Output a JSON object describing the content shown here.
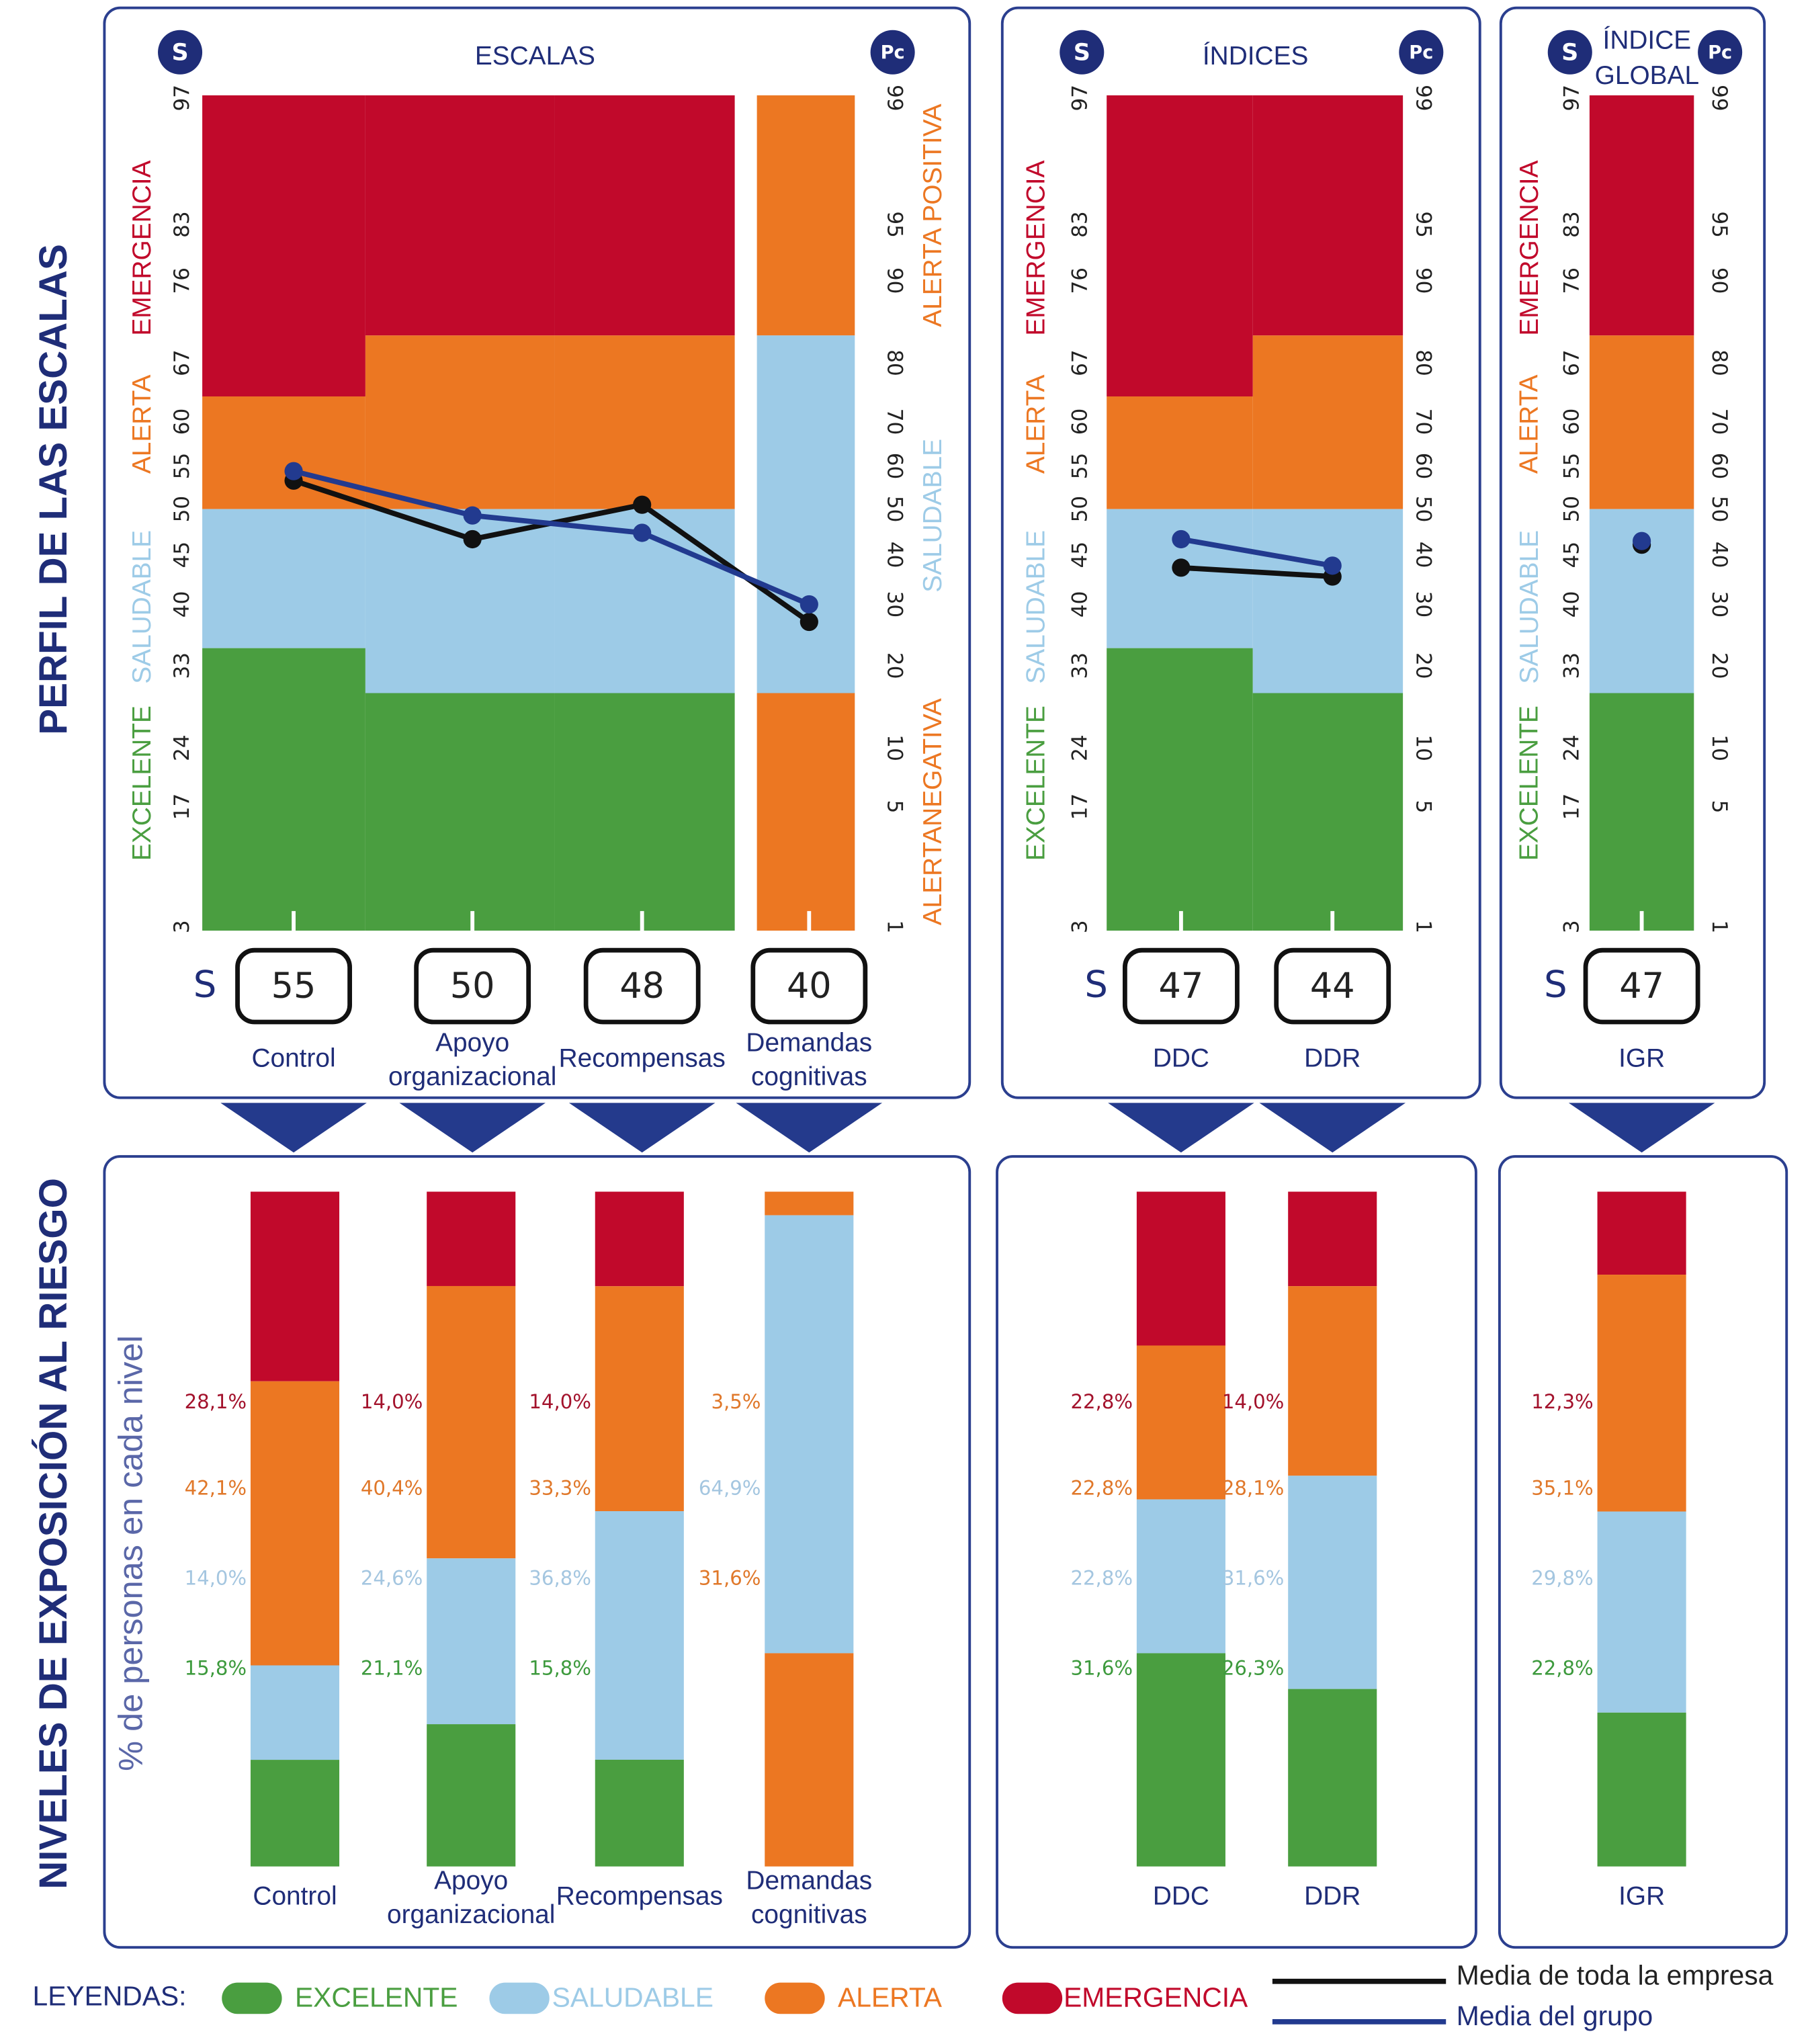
{
  "side_titles": {
    "profile": "PERFIL DE LAS ESCALAS",
    "exposure": "NIVELES DE EXPOSICIÓN AL RIESGO",
    "exposure_axis": "% de personas en cada nivel"
  },
  "badges": {
    "s": "S",
    "pc": "Pc"
  },
  "score_prefix": "S",
  "colors": {
    "emergencia": "#c1092b",
    "alerta": "#ec7722",
    "saludable": "#9dcbe7",
    "excelente": "#4a9e40",
    "navy": "#1f2d78",
    "company_line": "#111111",
    "group_line": "#223a8f"
  },
  "panels": [
    {
      "title_lines": [
        "ESCALAS"
      ],
      "left_zone_labels": [
        "EMERGENCIA",
        "ALERTA",
        "SALUDABLE",
        "EXCELENTE"
      ],
      "right_zone_labels": [
        "ALERTA POSITIVA",
        "SALUDABLE",
        "ALERTANEGATIVA"
      ]
    },
    {
      "title_lines": [
        "ÍNDICES"
      ],
      "left_zone_labels": [
        "EMERGENCIA",
        "ALERTA",
        "SALUDABLE",
        "EXCELENTE"
      ],
      "right_zone_labels": []
    },
    {
      "title_lines": [
        "ÍNDICE",
        "GLOBAL"
      ],
      "left_zone_labels": [
        "EMERGENCIA",
        "ALERTA",
        "SALUDABLE",
        "EXCELENTE"
      ],
      "right_zone_labels": []
    }
  ],
  "legend": {
    "title": "LEYENDAS:",
    "items": [
      {
        "label": "EXCELENTE",
        "color": "#4a9e40"
      },
      {
        "label": "SALUDABLE",
        "color": "#9dcbe7"
      },
      {
        "label": "ALERTA",
        "color": "#ec7722"
      },
      {
        "label": "EMERGENCIA",
        "color": "#c1092b"
      }
    ],
    "lines": [
      {
        "label": "Media de toda la empresa",
        "color": "#111111"
      },
      {
        "label": "Media del grupo",
        "color": "#223a8f"
      }
    ]
  },
  "chart_data": {
    "type": "bar",
    "title": "PERFIL DE LAS ESCALAS / NIVELES DE EXPOSICIÓN AL RIESGO",
    "profile_axis": {
      "s_ticks": [
        97,
        83,
        76,
        67,
        60,
        55,
        50,
        45,
        40,
        33,
        24,
        17,
        3
      ],
      "pc_ticks": [
        99,
        95,
        90,
        80,
        70,
        60,
        50,
        40,
        30,
        20,
        10,
        5,
        1
      ]
    },
    "zone_profiles": {
      "A": [
        {
          "level": "emergencia",
          "from": 63,
          "to": 97
        },
        {
          "level": "alerta",
          "from": 50,
          "to": 63
        },
        {
          "level": "saludable",
          "from": 35,
          "to": 50
        },
        {
          "level": "excelente",
          "from": 3,
          "to": 35
        }
      ],
      "B": [
        {
          "level": "emergencia",
          "from": 70,
          "to": 97
        },
        {
          "level": "alerta",
          "from": 50,
          "to": 70
        },
        {
          "level": "saludable",
          "from": 30,
          "to": 50
        },
        {
          "level": "excelente",
          "from": 3,
          "to": 30
        }
      ],
      "C": [
        {
          "level": "alerta",
          "from": 70,
          "to": 97
        },
        {
          "level": "saludable",
          "from": 30,
          "to": 70
        },
        {
          "level": "alerta",
          "from": 3,
          "to": 30
        }
      ]
    },
    "exposure_ylabel": "% de personas en cada nivel",
    "items": [
      {
        "name": "Control",
        "label_lines": [
          "Control"
        ],
        "panel": 0,
        "zones": "A",
        "score": 55,
        "group_mean": 54.4,
        "company_mean": 53.3,
        "exposure": [
          {
            "level": "emergencia",
            "value": 28.1,
            "label": "28,1%"
          },
          {
            "level": "alerta",
            "value": 42.1,
            "label": "42,1%"
          },
          {
            "level": "saludable",
            "value": 14.0,
            "label": "14,0%"
          },
          {
            "level": "excelente",
            "value": 15.8,
            "label": "15,8%"
          }
        ]
      },
      {
        "name": "Apoyo organizacional",
        "label_lines": [
          "Apoyo",
          "organizacional"
        ],
        "panel": 0,
        "zones": "B",
        "score": 50,
        "group_mean": 49.3,
        "company_mean": 46.7,
        "exposure": [
          {
            "level": "emergencia",
            "value": 14.0,
            "label": "14,0%"
          },
          {
            "level": "alerta",
            "value": 40.4,
            "label": "40,4%"
          },
          {
            "level": "saludable",
            "value": 24.6,
            "label": "24,6%"
          },
          {
            "level": "excelente",
            "value": 21.1,
            "label": "21,1%"
          }
        ]
      },
      {
        "name": "Recompensas",
        "label_lines": [
          "Recompensas"
        ],
        "panel": 0,
        "zones": "B",
        "score": 48,
        "group_mean": 47.4,
        "company_mean": 50.5,
        "exposure": [
          {
            "level": "emergencia",
            "value": 14.0,
            "label": "14,0%"
          },
          {
            "level": "alerta",
            "value": 33.3,
            "label": "33,3%"
          },
          {
            "level": "saludable",
            "value": 36.8,
            "label": "36,8%"
          },
          {
            "level": "excelente",
            "value": 15.8,
            "label": "15,8%"
          }
        ]
      },
      {
        "name": "Demandas cognitivas",
        "label_lines": [
          "Demandas",
          "cognitivas"
        ],
        "panel": 0,
        "zones": "C",
        "score": 40,
        "group_mean": 40.0,
        "company_mean": 38.0,
        "exposure": [
          {
            "level": "alerta",
            "value": 3.5,
            "label": "3,5%"
          },
          {
            "level": "saludable",
            "value": 64.9,
            "label": "64,9%"
          },
          {
            "level": "alerta",
            "value": 31.6,
            "label": "31,6%"
          }
        ]
      },
      {
        "name": "DDC",
        "label_lines": [
          "DDC"
        ],
        "panel": 1,
        "zones": "A",
        "score": 47,
        "group_mean": 46.7,
        "company_mean": 43.7,
        "exposure": [
          {
            "level": "emergencia",
            "value": 22.8,
            "label": "22,8%"
          },
          {
            "level": "alerta",
            "value": 22.8,
            "label": "22,8%"
          },
          {
            "level": "saludable",
            "value": 22.8,
            "label": "22,8%"
          },
          {
            "level": "excelente",
            "value": 31.6,
            "label": "31,6%"
          }
        ]
      },
      {
        "name": "DDR",
        "label_lines": [
          "DDR"
        ],
        "panel": 1,
        "zones": "B",
        "score": 44,
        "group_mean": 43.9,
        "company_mean": 42.8,
        "exposure": [
          {
            "level": "emergencia",
            "value": 14.0,
            "label": "14,0%"
          },
          {
            "level": "alerta",
            "value": 28.1,
            "label": "28,1%"
          },
          {
            "level": "saludable",
            "value": 31.6,
            "label": "31,6%"
          },
          {
            "level": "excelente",
            "value": 26.3,
            "label": "26,3%"
          }
        ]
      },
      {
        "name": "IGR",
        "label_lines": [
          "IGR"
        ],
        "panel": 2,
        "zones": "B",
        "score": 47,
        "group_mean": 46.5,
        "company_mean": 46.1,
        "exposure": [
          {
            "level": "emergencia",
            "value": 12.3,
            "label": "12,3%"
          },
          {
            "level": "alerta",
            "value": 35.1,
            "label": "35,1%"
          },
          {
            "level": "saludable",
            "value": 29.8,
            "label": "29,8%"
          },
          {
            "level": "excelente",
            "value": 22.8,
            "label": "22,8%"
          }
        ]
      }
    ]
  }
}
